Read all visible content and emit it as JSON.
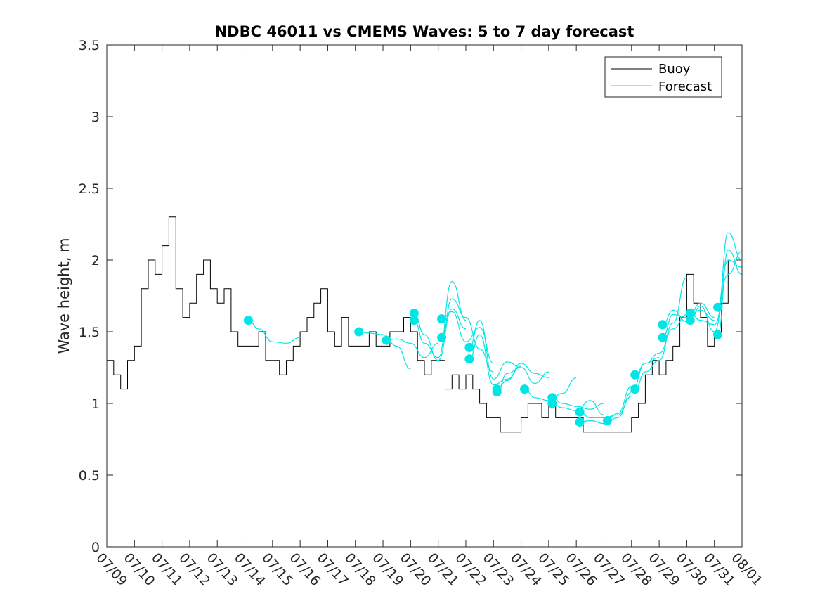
{
  "chart_data": {
    "type": "line",
    "title": "NDBC 46011 vs CMEMS Waves: 5 to 7 day forecast",
    "xlabel": "",
    "ylabel": "Wave height, m",
    "xlim": [
      "07/09",
      "08/01"
    ],
    "ylim": [
      0,
      3.5
    ],
    "x_ticks": [
      "07/09",
      "07/10",
      "07/11",
      "07/12",
      "07/13",
      "07/14",
      "07/15",
      "07/16",
      "07/17",
      "07/18",
      "07/19",
      "07/20",
      "07/21",
      "07/22",
      "07/23",
      "07/24",
      "07/25",
      "07/26",
      "07/27",
      "07/28",
      "07/29",
      "07/30",
      "07/31",
      "08/01"
    ],
    "y_ticks": [
      "0",
      "0.5",
      "1",
      "1.5",
      "2",
      "2.5",
      "3",
      "3.5"
    ],
    "grid": false,
    "legend": {
      "position": "top-right",
      "entries": [
        "Buoy",
        "Forecast"
      ]
    },
    "colors": {
      "buoy": "#000000",
      "forecast": "#00e6e6",
      "axis": "#262626"
    },
    "series": [
      {
        "name": "Buoy",
        "x": [
          "07/09 00:00",
          "07/09 06:00",
          "07/09 12:00",
          "07/09 18:00",
          "07/10 00:00",
          "07/10 06:00",
          "07/10 12:00",
          "07/10 18:00",
          "07/11 00:00",
          "07/11 06:00",
          "07/11 12:00",
          "07/11 18:00",
          "07/12 00:00",
          "07/12 06:00",
          "07/12 12:00",
          "07/12 18:00",
          "07/13 00:00",
          "07/13 06:00",
          "07/13 12:00",
          "07/13 18:00",
          "07/14 00:00",
          "07/14 06:00",
          "07/14 12:00",
          "07/14 18:00",
          "07/15 00:00",
          "07/15 06:00",
          "07/15 12:00",
          "07/15 18:00",
          "07/16 00:00",
          "07/16 06:00",
          "07/16 12:00",
          "07/16 18:00",
          "07/17 00:00",
          "07/17 06:00",
          "07/17 12:00",
          "07/17 18:00",
          "07/18 00:00",
          "07/18 06:00",
          "07/18 12:00",
          "07/18 18:00",
          "07/19 00:00",
          "07/19 06:00",
          "07/19 12:00",
          "07/19 18:00",
          "07/20 00:00",
          "07/20 06:00",
          "07/20 12:00",
          "07/20 18:00",
          "07/21 00:00",
          "07/21 06:00",
          "07/21 12:00",
          "07/21 18:00",
          "07/22 00:00",
          "07/22 06:00",
          "07/22 12:00",
          "07/22 18:00",
          "07/23 00:00",
          "07/23 06:00",
          "07/23 12:00",
          "07/23 18:00",
          "07/24 00:00",
          "07/24 06:00",
          "07/24 12:00",
          "07/24 18:00",
          "07/25 00:00",
          "07/25 06:00",
          "07/25 12:00",
          "07/25 18:00",
          "07/26 00:00",
          "07/26 06:00",
          "07/26 12:00",
          "07/26 18:00",
          "07/27 00:00",
          "07/27 06:00",
          "07/27 12:00",
          "07/27 18:00",
          "07/28 00:00",
          "07/28 06:00",
          "07/28 12:00",
          "07/28 18:00",
          "07/29 00:00",
          "07/29 06:00",
          "07/29 12:00",
          "07/29 18:00",
          "07/30 00:00",
          "07/30 06:00",
          "07/30 12:00",
          "07/30 18:00",
          "07/31 00:00",
          "07/31 06:00",
          "07/31 12:00"
        ],
        "values": [
          1.3,
          1.2,
          1.1,
          1.3,
          1.4,
          1.8,
          2.0,
          1.9,
          2.1,
          2.3,
          1.8,
          1.6,
          1.7,
          1.9,
          2.0,
          1.8,
          1.7,
          1.8,
          1.5,
          1.4,
          1.4,
          1.4,
          1.5,
          1.3,
          1.3,
          1.2,
          1.3,
          1.4,
          1.5,
          1.6,
          1.7,
          1.8,
          1.5,
          1.4,
          1.6,
          1.4,
          1.4,
          1.4,
          1.5,
          1.4,
          1.4,
          1.5,
          1.5,
          1.6,
          1.5,
          1.3,
          1.2,
          1.3,
          1.3,
          1.1,
          1.2,
          1.1,
          1.2,
          1.1,
          1.0,
          0.9,
          0.9,
          0.8,
          0.8,
          0.8,
          0.9,
          1.0,
          1.0,
          0.9,
          1.0,
          0.9,
          0.9,
          0.9,
          0.9,
          0.8,
          0.8,
          0.8,
          0.8,
          0.8,
          0.8,
          0.8,
          0.9,
          1.0,
          1.2,
          1.3,
          1.2,
          1.3,
          1.4,
          1.6,
          1.9,
          1.7,
          1.6,
          1.4,
          1.5,
          1.7,
          2.0
        ]
      },
      {
        "name": "Forecast",
        "runs": [
          {
            "x": [
              "07/14 03:00",
              "07/14 12:00",
              "07/15 00:00",
              "07/15 12:00",
              "07/16 00:00"
            ],
            "values": [
              1.58,
              1.52,
              1.43,
              1.42,
              1.46
            ]
          },
          {
            "x": [
              "07/18 03:00",
              "07/18 12:00",
              "07/19 00:00",
              "07/19 12:00",
              "07/20 00:00"
            ],
            "values": [
              1.5,
              1.49,
              1.48,
              1.4,
              1.24
            ]
          },
          {
            "x": [
              "07/19 03:00",
              "07/19 12:00",
              "07/20 00:00",
              "07/20 12:00",
              "07/21 00:00"
            ],
            "values": [
              1.44,
              1.45,
              1.42,
              1.32,
              1.42
            ]
          },
          {
            "x": [
              "07/20 03:00",
              "07/20 12:00",
              "07/21 00:00",
              "07/21 12:00",
              "07/22 00:00"
            ],
            "values": [
              1.63,
              1.48,
              1.3,
              1.66,
              1.52
            ]
          },
          {
            "x": [
              "07/20 03:00",
              "07/20 12:00",
              "07/21 00:00",
              "07/21 12:00",
              "07/22 00:00"
            ],
            "values": [
              1.58,
              1.42,
              1.32,
              1.85,
              1.58
            ]
          },
          {
            "x": [
              "07/21 03:00",
              "07/21 12:00",
              "07/22 00:00",
              "07/22 12:00",
              "07/23 00:00"
            ],
            "values": [
              1.59,
              1.64,
              1.43,
              1.53,
              1.28
            ]
          },
          {
            "x": [
              "07/21 03:00",
              "07/21 12:00",
              "07/22 00:00",
              "07/22 12:00",
              "07/23 00:00"
            ],
            "values": [
              1.46,
              1.73,
              1.6,
              1.38,
              1.22
            ]
          },
          {
            "x": [
              "07/22 03:00",
              "07/22 12:00",
              "07/23 00:00",
              "07/23 12:00",
              "07/24 00:00"
            ],
            "values": [
              1.39,
              1.58,
              1.17,
              1.29,
              1.25
            ]
          },
          {
            "x": [
              "07/22 03:00",
              "07/22 12:00",
              "07/23 00:00",
              "07/23 12:00",
              "07/24 00:00"
            ],
            "values": [
              1.31,
              1.48,
              1.13,
              1.17,
              1.26
            ]
          },
          {
            "x": [
              "07/23 03:00",
              "07/23 12:00",
              "07/24 00:00",
              "07/24 12:00",
              "07/25 00:00"
            ],
            "values": [
              1.1,
              1.16,
              1.28,
              1.21,
              1.18
            ]
          },
          {
            "x": [
              "07/23 03:00",
              "07/23 12:00",
              "07/24 00:00",
              "07/24 12:00",
              "07/25 00:00"
            ],
            "values": [
              1.08,
              1.21,
              1.25,
              1.14,
              1.22
            ]
          },
          {
            "x": [
              "07/24 03:00",
              "07/24 12:00",
              "07/25 00:00",
              "07/25 12:00",
              "07/26 00:00"
            ],
            "values": [
              1.1,
              1.04,
              1.02,
              1.07,
              1.18
            ]
          },
          {
            "x": [
              "07/25 03:00",
              "07/25 12:00",
              "07/26 00:00",
              "07/26 12:00",
              "07/27 00:00"
            ],
            "values": [
              1.04,
              1.0,
              0.98,
              0.96,
              1.0
            ]
          },
          {
            "x": [
              "07/25 03:00",
              "07/25 12:00",
              "07/26 00:00",
              "07/26 12:00",
              "07/27 00:00"
            ],
            "values": [
              1.0,
              0.97,
              0.95,
              1.02,
              0.92
            ]
          },
          {
            "x": [
              "07/26 03:00",
              "07/26 12:00",
              "07/27 00:00",
              "07/27 12:00",
              "07/28 00:00"
            ],
            "values": [
              0.94,
              0.9,
              0.9,
              0.92,
              1.05
            ]
          },
          {
            "x": [
              "07/26 03:00",
              "07/26 12:00",
              "07/27 00:00",
              "07/27 12:00",
              "07/28 00:00"
            ],
            "values": [
              0.87,
              0.88,
              0.86,
              0.93,
              1.12
            ]
          },
          {
            "x": [
              "07/27 03:00",
              "07/27 12:00",
              "07/28 00:00",
              "07/28 12:00",
              "07/29 00:00"
            ],
            "values": [
              0.88,
              0.9,
              1.08,
              1.28,
              1.32
            ]
          },
          {
            "x": [
              "07/28 03:00",
              "07/28 12:00",
              "07/29 00:00",
              "07/29 12:00",
              "07/30 00:00"
            ],
            "values": [
              1.2,
              1.28,
              1.35,
              1.52,
              1.62
            ]
          },
          {
            "x": [
              "07/28 03:00",
              "07/28 12:00",
              "07/29 00:00",
              "07/29 12:00",
              "07/30 00:00"
            ],
            "values": [
              1.1,
              1.22,
              1.3,
              1.56,
              1.88
            ]
          },
          {
            "x": [
              "07/29 03:00",
              "07/29 12:00",
              "07/30 00:00",
              "07/30 12:00",
              "07/31 00:00"
            ],
            "values": [
              1.55,
              1.65,
              1.57,
              1.7,
              1.6
            ]
          },
          {
            "x": [
              "07/29 03:00",
              "07/29 12:00",
              "07/30 00:00",
              "07/30 12:00",
              "07/31 00:00"
            ],
            "values": [
              1.46,
              1.62,
              1.6,
              1.65,
              1.58
            ]
          },
          {
            "x": [
              "07/30 03:00",
              "07/30 12:00",
              "07/31 00:00",
              "07/31 12:00",
              "08/01 00:00"
            ],
            "values": [
              1.63,
              1.58,
              1.55,
              1.9,
              2.06
            ]
          },
          {
            "x": [
              "07/30 03:00",
              "07/30 12:00",
              "07/31 00:00",
              "07/31 12:00",
              "08/01 00:00"
            ],
            "values": [
              1.58,
              1.68,
              1.5,
              2.0,
              1.95
            ]
          },
          {
            "x": [
              "07/31 03:00",
              "07/31 12:00",
              "08/01 00:00"
            ],
            "values": [
              1.67,
              2.19,
              2.0
            ]
          },
          {
            "x": [
              "07/31 03:00",
              "07/31 12:00",
              "08/01 00:00"
            ],
            "values": [
              1.48,
              2.07,
              1.9
            ]
          }
        ]
      }
    ]
  }
}
